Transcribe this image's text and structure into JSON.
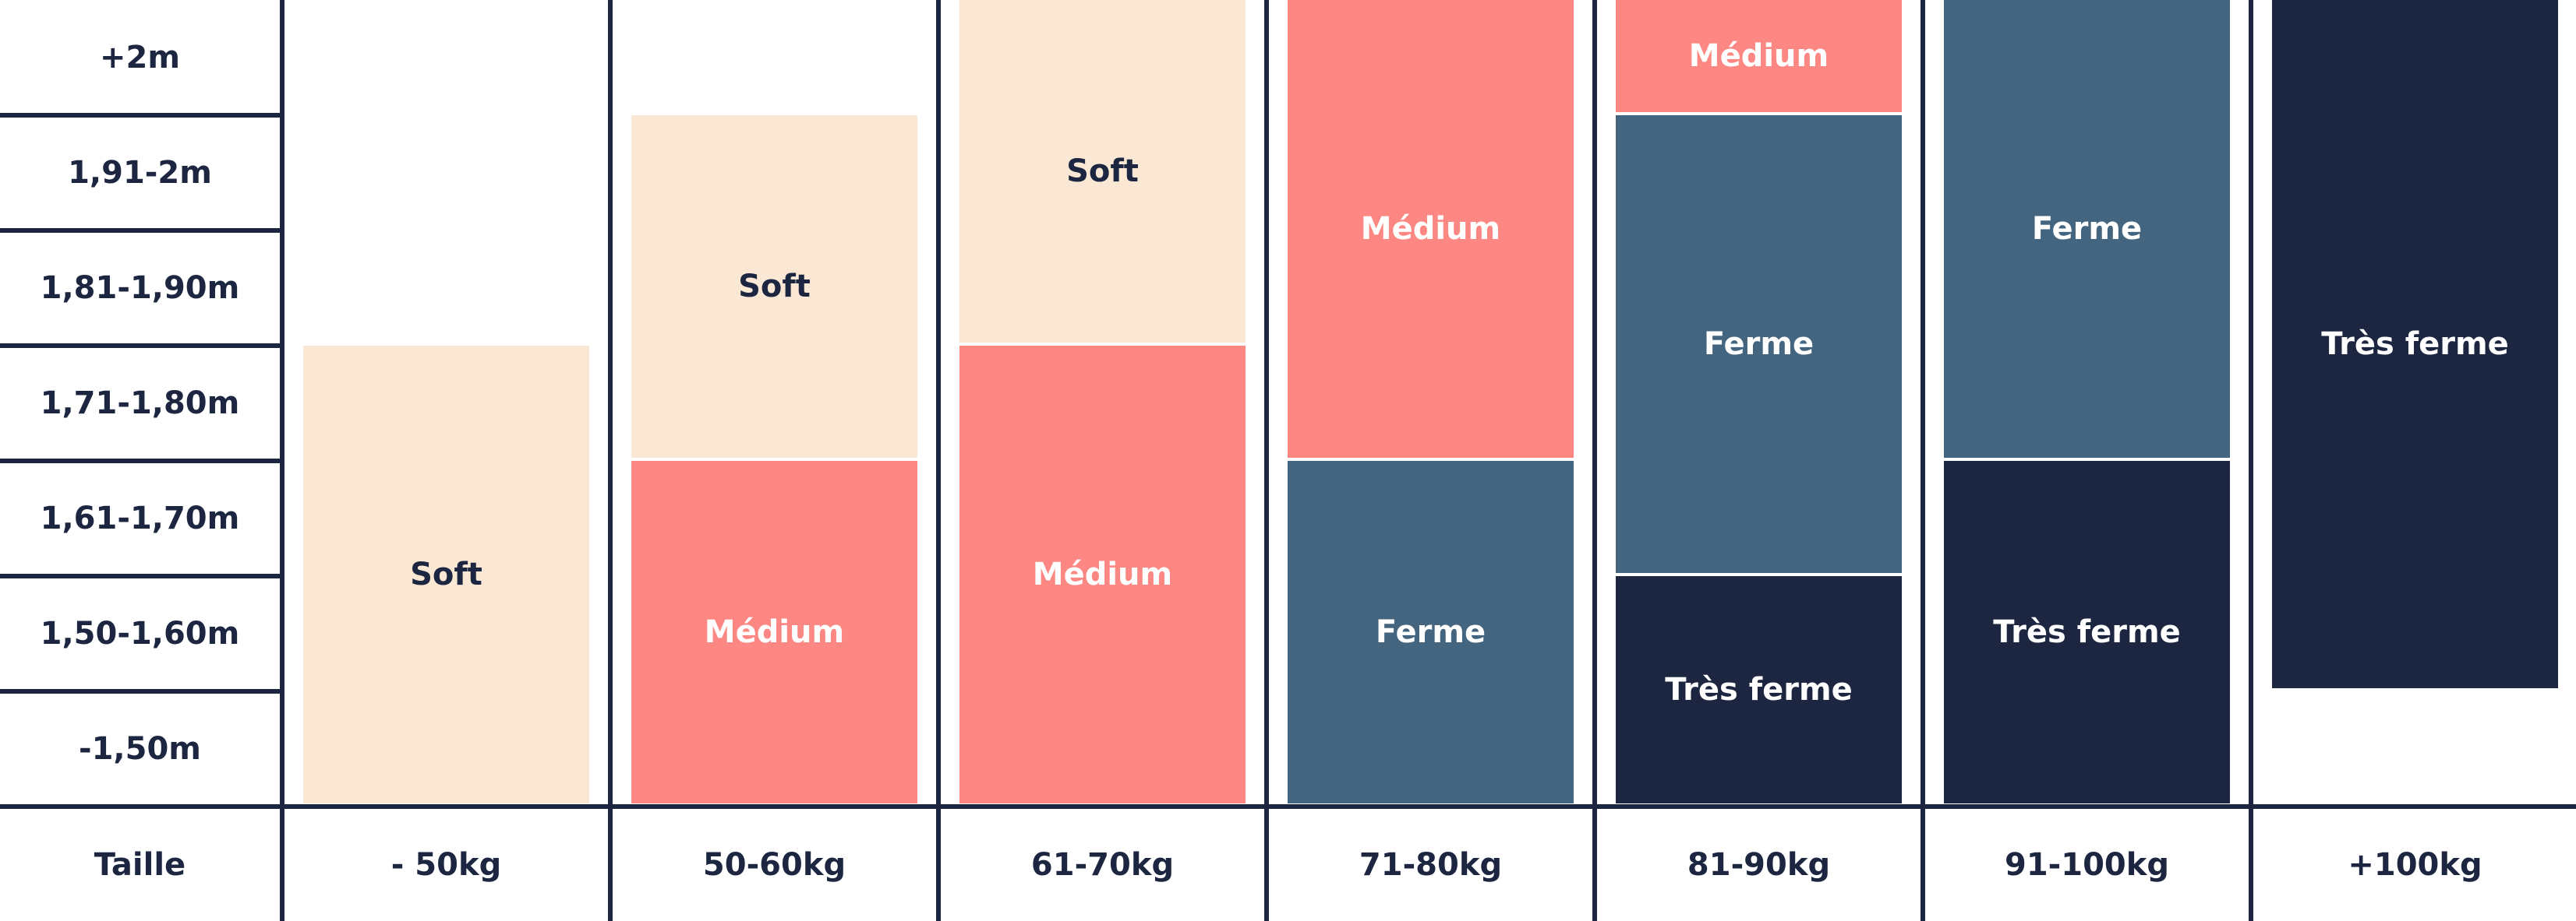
{
  "chart_data": {
    "type": "bar",
    "stacked": true,
    "corner_label": "Taille",
    "x_categories": [
      "- 50kg",
      "50-60kg",
      "61-70kg",
      "71-80kg",
      "81-90kg",
      "91-100kg",
      "+100kg"
    ],
    "y_categories": [
      "-1,50m",
      "1,50-1,60m",
      "1,61-1,70m",
      "1,71-1,80m",
      "1,81-1,90m",
      "1,91-2m",
      "+2m"
    ],
    "colors": {
      "Soft": "#fae8d4",
      "Médium": "#fd8883",
      "Ferme": "#44657f",
      "Très ferme": "#1c2640",
      "grid": "#1c2640"
    },
    "text_colors": {
      "Soft": "#1c2640",
      "Médium": "#ffffff",
      "Ferme": "#ffffff",
      "Très ferme": "#ffffff"
    },
    "columns": [
      {
        "category": "- 50kg",
        "segments": [
          {
            "label": "Soft",
            "from": 0,
            "to": 4
          }
        ]
      },
      {
        "category": "50-60kg",
        "segments": [
          {
            "label": "Médium",
            "from": 0,
            "to": 3
          },
          {
            "label": "Soft",
            "from": 3,
            "to": 6
          }
        ]
      },
      {
        "category": "61-70kg",
        "segments": [
          {
            "label": "Médium",
            "from": 0,
            "to": 4
          },
          {
            "label": "Soft",
            "from": 4,
            "to": 7
          }
        ]
      },
      {
        "category": "71-80kg",
        "segments": [
          {
            "label": "Ferme",
            "from": 0,
            "to": 3
          },
          {
            "label": "Médium",
            "from": 3,
            "to": 7
          }
        ]
      },
      {
        "category": "81-90kg",
        "segments": [
          {
            "label": "Très ferme",
            "from": 0,
            "to": 2
          },
          {
            "label": "Ferme",
            "from": 2,
            "to": 6
          },
          {
            "label": "Médium",
            "from": 6,
            "to": 7
          }
        ]
      },
      {
        "category": "91-100kg",
        "segments": [
          {
            "label": "Très ferme",
            "from": 0,
            "to": 3
          },
          {
            "label": "Ferme",
            "from": 3,
            "to": 7
          }
        ]
      },
      {
        "category": "+100kg",
        "segments": [
          {
            "label": "Très ferme",
            "from": 1,
            "to": 7
          }
        ]
      }
    ]
  }
}
